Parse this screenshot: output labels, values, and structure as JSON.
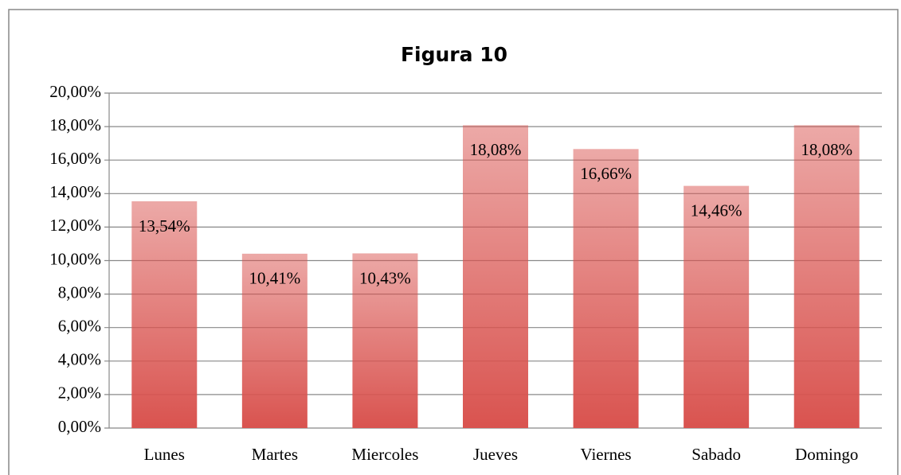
{
  "chart_data": {
    "type": "bar",
    "title": "Figura 10",
    "categories": [
      "Lunes",
      "Martes",
      "Miercoles",
      "Jueves",
      "Viernes",
      "Sabado",
      "Domingo"
    ],
    "values": [
      13.54,
      10.41,
      10.43,
      18.08,
      16.66,
      14.46,
      18.08
    ],
    "value_labels": [
      "13,54%",
      "10,41%",
      "10,43%",
      "18,08%",
      "16,66%",
      "14,46%",
      "18,08%"
    ],
    "color": "#d9534f",
    "ylim": [
      0,
      20
    ],
    "yticks": [
      {
        "value": 0,
        "label": "0,00%"
      },
      {
        "value": 2,
        "label": "2,00%"
      },
      {
        "value": 4,
        "label": "4,00%"
      },
      {
        "value": 6,
        "label": "6,00%"
      },
      {
        "value": 8,
        "label": "8,00%"
      },
      {
        "value": 10,
        "label": "10,00%"
      },
      {
        "value": 12,
        "label": "12,00%"
      },
      {
        "value": 14,
        "label": "14,00%"
      },
      {
        "value": 16,
        "label": "16,00%"
      },
      {
        "value": 18,
        "label": "18,00%"
      },
      {
        "value": 20,
        "label": "20,00%"
      }
    ],
    "grid": true
  }
}
